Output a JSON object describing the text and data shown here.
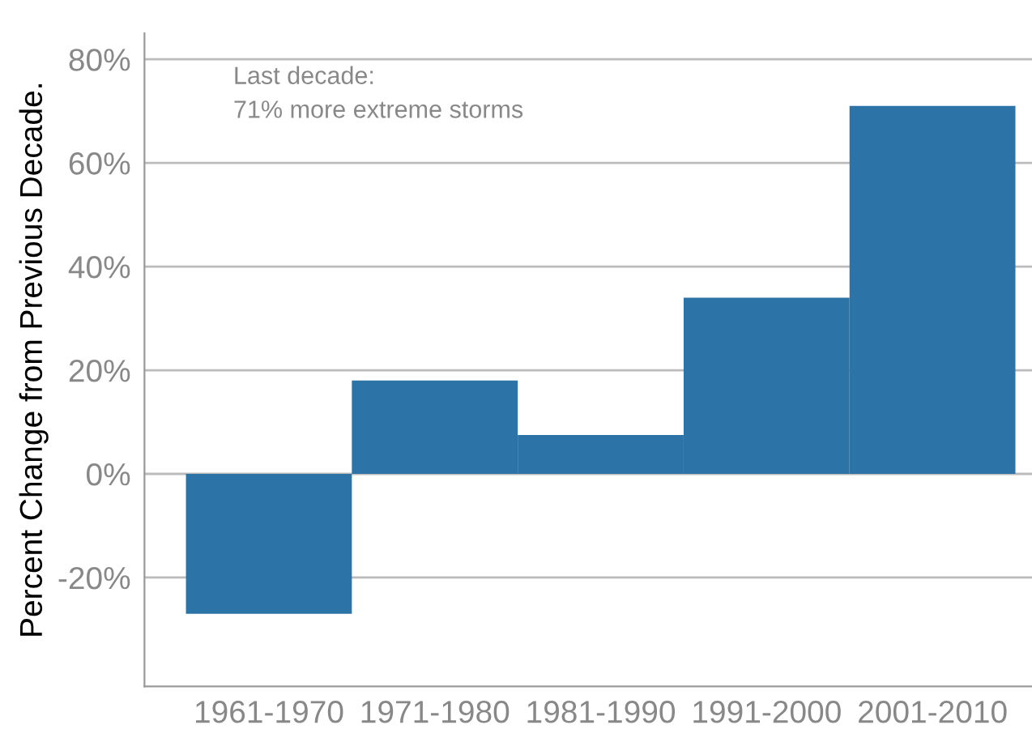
{
  "chart_data": {
    "type": "bar",
    "ylabel": "Percent Change from Previous Decade.",
    "categories": [
      "1961-1970",
      "1971-1980",
      "1981-1990",
      "1991-2000",
      "2001-2010"
    ],
    "values": [
      -27,
      18,
      7.5,
      34,
      71
    ],
    "color": "#2c74a7",
    "ylim": [
      -41,
      85
    ],
    "yticks": [
      {
        "value": -20,
        "label": "-20%"
      },
      {
        "value": 0,
        "label": "0%"
      },
      {
        "value": 20,
        "label": "20%"
      },
      {
        "value": 40,
        "label": "40%"
      },
      {
        "value": 60,
        "label": "60%"
      },
      {
        "value": 80,
        "label": "80%"
      }
    ],
    "grid": "y",
    "annotations": [
      "Last decade:\n71% more extreme storms"
    ]
  }
}
